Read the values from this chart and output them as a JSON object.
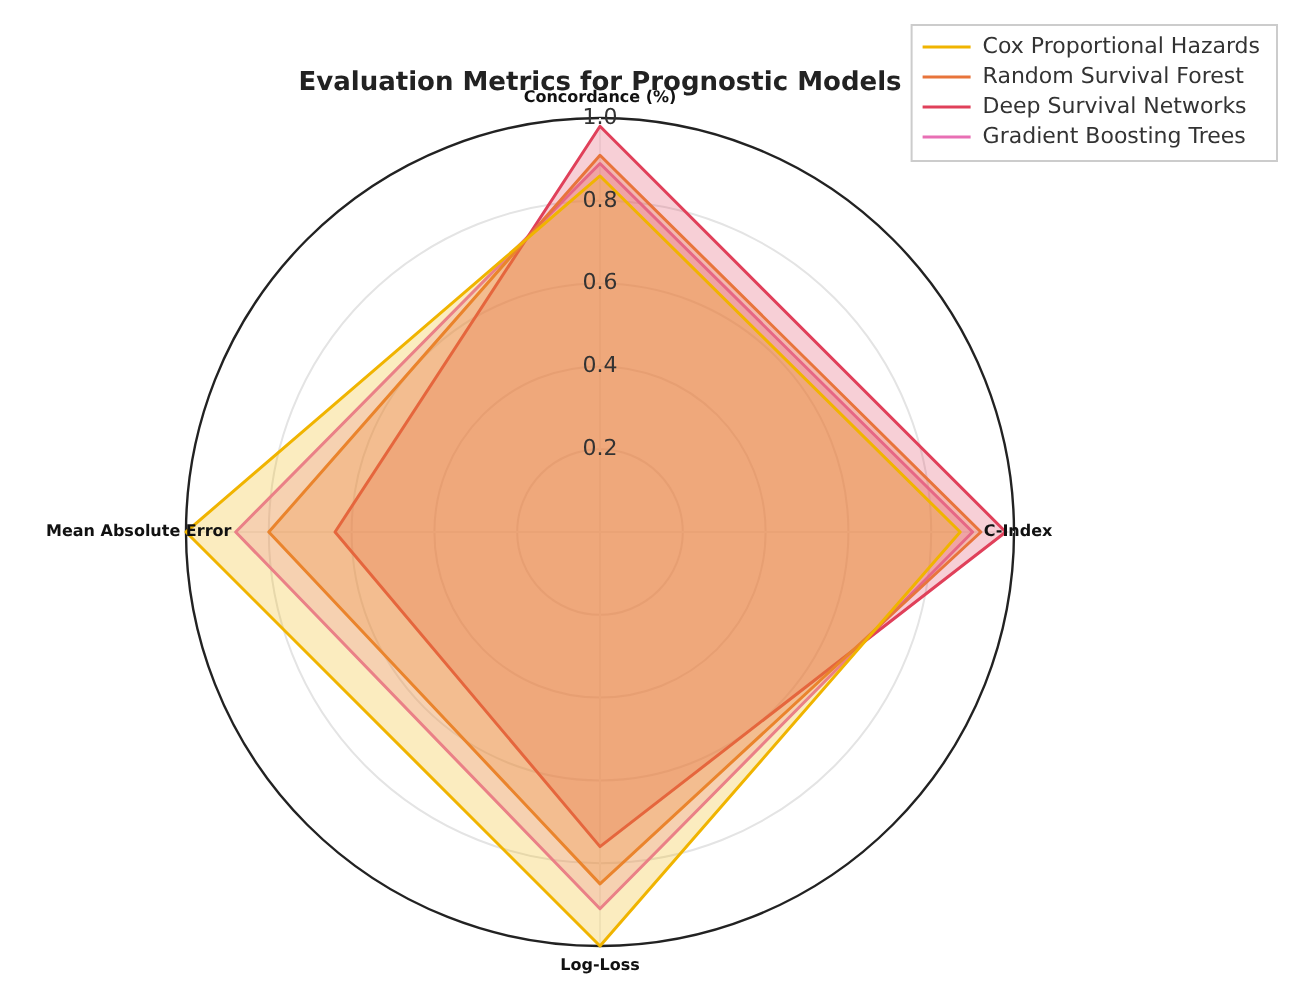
{
  "chart_data": {
    "type": "radar",
    "title": "Evaluation Metrics for Prognostic Models",
    "categories": [
      "Concordance (%)",
      "C-Index",
      "Log-Loss",
      "Mean Absolute Error"
    ],
    "series": [
      {
        "name": "Cox Proportional Hazards",
        "color": "#f0b400",
        "values": [
          0.86,
          0.87,
          1.0,
          1.0
        ]
      },
      {
        "name": "Random Survival Forest",
        "color": "#e8743b",
        "values": [
          0.91,
          0.92,
          0.85,
          0.8
        ]
      },
      {
        "name": "Deep Survival Networks",
        "color": "#e0405a",
        "values": [
          0.98,
          0.98,
          0.76,
          0.64
        ]
      },
      {
        "name": "Gradient Boosting Trees",
        "color": "#e86fb4",
        "values": [
          0.89,
          0.9,
          0.91,
          0.88
        ]
      }
    ],
    "ylim": [
      0,
      1
    ],
    "yticks": [
      0.2,
      0.4,
      0.6,
      0.8,
      {
        "value": 1,
        "label": "1.0"
      }
    ],
    "grid": true,
    "legend": "top right",
    "marker": "none",
    "line_style": "solid"
  }
}
